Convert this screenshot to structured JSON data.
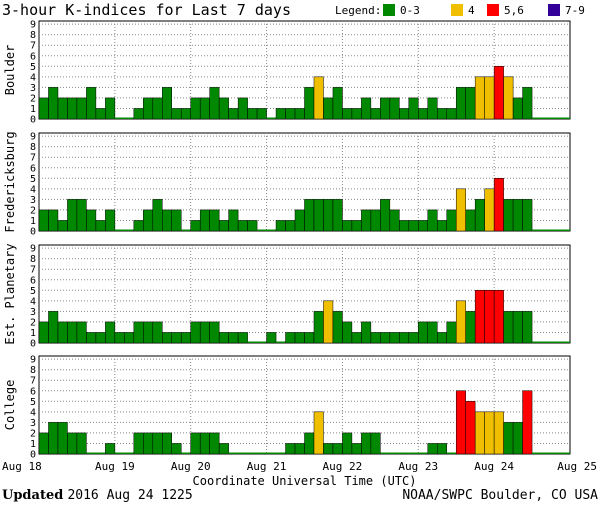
{
  "title": "3-hour K-indices for Last 7 days",
  "legend": {
    "label": "Legend:",
    "items": [
      {
        "label": "0-3",
        "color": "#008800"
      },
      {
        "label": "4",
        "color": "#f0c000"
      },
      {
        "label": "5,6",
        "color": "#ff0000"
      },
      {
        "label": "7-9",
        "color": "#330099"
      }
    ]
  },
  "colors": {
    "low": "#008800",
    "moderate": "#f0c000",
    "high": "#ff0000",
    "severe": "#330099",
    "bar_outline": "#000000",
    "grid": "#888888"
  },
  "chart_data": [
    {
      "type": "bar",
      "station": "Boulder",
      "ylim": [
        0,
        9
      ],
      "yticks": [
        "0",
        "1",
        "2",
        "3",
        "4",
        "5",
        "6",
        "7",
        "8",
        "9"
      ],
      "values": [
        2,
        3,
        2,
        2,
        2,
        3,
        1,
        2,
        0,
        0,
        1,
        2,
        2,
        3,
        1,
        1,
        2,
        2,
        3,
        2,
        1,
        2,
        1,
        1,
        0,
        1,
        1,
        1,
        3,
        4,
        2,
        3,
        1,
        1,
        2,
        1,
        2,
        2,
        1,
        2,
        1,
        2,
        1,
        1,
        3,
        3,
        4,
        4,
        5,
        4,
        2,
        3,
        0,
        0,
        0,
        0
      ]
    },
    {
      "type": "bar",
      "station": "Fredericksburg",
      "ylim": [
        0,
        9
      ],
      "yticks": [
        "0",
        "1",
        "2",
        "3",
        "4",
        "5",
        "6",
        "7",
        "8",
        "9"
      ],
      "values": [
        2,
        2,
        1,
        3,
        3,
        2,
        1,
        2,
        0,
        0,
        1,
        2,
        3,
        2,
        2,
        0,
        1,
        2,
        2,
        1,
        2,
        1,
        1,
        0,
        0,
        1,
        1,
        2,
        3,
        3,
        3,
        3,
        1,
        1,
        2,
        2,
        3,
        2,
        1,
        1,
        1,
        2,
        1,
        2,
        4,
        2,
        3,
        4,
        5,
        3,
        3,
        3,
        0,
        0,
        0,
        0
      ]
    },
    {
      "type": "bar",
      "station": "Est. Planetary",
      "ylim": [
        0,
        9
      ],
      "yticks": [
        "0",
        "1",
        "2",
        "3",
        "4",
        "5",
        "6",
        "7",
        "8",
        "9"
      ],
      "values": [
        2,
        3,
        2,
        2,
        2,
        1,
        1,
        2,
        1,
        1,
        2,
        2,
        2,
        1,
        1,
        1,
        2,
        2,
        2,
        1,
        1,
        1,
        0,
        0,
        1,
        0,
        1,
        1,
        1,
        3,
        4,
        3,
        2,
        1,
        2,
        1,
        1,
        1,
        1,
        1,
        2,
        2,
        1,
        2,
        4,
        3,
        5,
        5,
        5,
        3,
        3,
        3,
        0,
        0,
        0,
        0
      ]
    },
    {
      "type": "bar",
      "station": "College",
      "ylim": [
        0,
        9
      ],
      "yticks": [
        "0",
        "1",
        "2",
        "3",
        "4",
        "5",
        "6",
        "7",
        "8",
        "9"
      ],
      "values": [
        2,
        3,
        3,
        2,
        2,
        0,
        0,
        1,
        0,
        0,
        2,
        2,
        2,
        2,
        1,
        0,
        2,
        2,
        2,
        1,
        0,
        0,
        0,
        0,
        0,
        0,
        1,
        1,
        2,
        4,
        1,
        1,
        2,
        1,
        2,
        2,
        0,
        0,
        0,
        0,
        0,
        1,
        1,
        0,
        6,
        5,
        4,
        4,
        4,
        3,
        3,
        6,
        0,
        0,
        0,
        0
      ]
    }
  ],
  "x_axis": {
    "label": "Coordinate Universal Time (UTC)",
    "ticks": [
      "Aug 18",
      "Aug 19",
      "Aug 20",
      "Aug 21",
      "Aug 22",
      "Aug 23",
      "Aug 24",
      "Aug 25"
    ]
  },
  "footer": {
    "updated_label": "Updated",
    "updated_value": "2016 Aug 24 1225",
    "source": "NOAA/SWPC Boulder, CO USA"
  }
}
